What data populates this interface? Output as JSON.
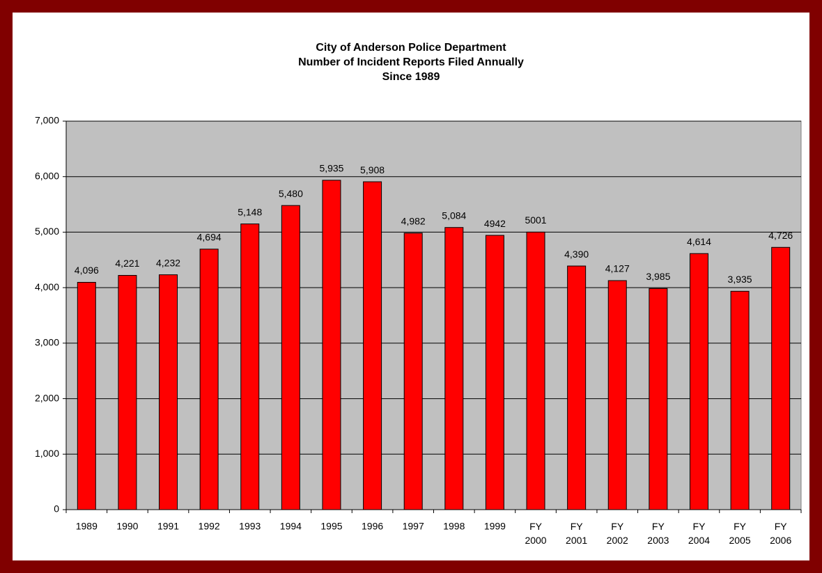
{
  "chart_data": {
    "type": "bar",
    "title": [
      "City of Anderson Police Department",
      "Number of Incident Reports Filed Annually",
      "Since 1989"
    ],
    "categories": [
      "1989",
      "1990",
      "1991",
      "1992",
      "1993",
      "1994",
      "1995",
      "1996",
      "1997",
      "1998",
      "1999",
      "FY 2000",
      "FY 2001",
      "FY 2002",
      "FY 2003",
      "FY 2004",
      "FY 2005",
      "FY 2006"
    ],
    "values": [
      4096,
      4221,
      4232,
      4694,
      5148,
      5480,
      5935,
      5908,
      4982,
      5084,
      4942,
      5001,
      4390,
      4127,
      3985,
      4614,
      3935,
      4726
    ],
    "value_labels": [
      "4,096",
      "4,221",
      "4,232",
      "4,694",
      "5,148",
      "5,480",
      "5,935",
      "5,908",
      "4,982",
      "5,084",
      "4942",
      "5001",
      "4,390",
      "4,127",
      "3,985",
      "4,614",
      "3,935",
      "4,726"
    ],
    "color": "#ff0000",
    "ylim": [
      0,
      7000
    ],
    "yticks": [
      0,
      {
        "value": 1000,
        "label": "1,000"
      },
      {
        "value": 2000,
        "label": "2,000"
      },
      {
        "value": 3000,
        "label": "3,000"
      },
      {
        "value": 4000,
        "label": "4,000"
      },
      {
        "value": 5000,
        "label": "5,000"
      },
      {
        "value": 6000,
        "label": "6,000"
      },
      {
        "value": 7000,
        "label": "7,000"
      }
    ],
    "grid": true
  }
}
